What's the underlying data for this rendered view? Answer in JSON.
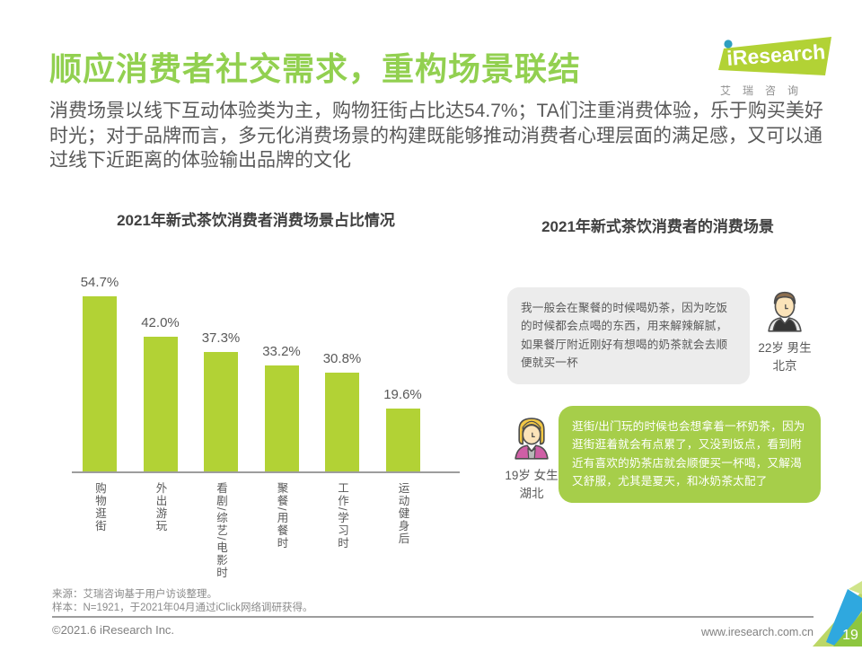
{
  "page": {
    "title": "顺应消费者社交需求，重构场景联结",
    "intro": "消费场景以线下互动体验类为主，购物狂街占比达54.7%；TA们注重消费体验，乐于购买美好时光；对于品牌而言，多元化消费场景的构建既能够推动消费者心理层面的满足感，又可以通过线下近距离的体验输出品牌的文化"
  },
  "logo": {
    "brand": "iResearch",
    "caption": "艾瑞咨询"
  },
  "chart_data": {
    "type": "bar",
    "title": "2021年新式茶饮消费者消费场景占比情况",
    "categories": [
      "购物逛街",
      "外出游玩",
      "看剧/综艺/电影时",
      "聚餐/用餐时",
      "工作/学习时",
      "运动健身后"
    ],
    "values": [
      54.7,
      42.0,
      37.3,
      33.2,
      30.8,
      19.6
    ],
    "value_labels": [
      "54.7%",
      "42.0%",
      "37.3%",
      "33.2%",
      "30.8%",
      "19.6%"
    ],
    "xlabel": "",
    "ylabel": "",
    "ylim": [
      0,
      60
    ],
    "grid": false,
    "legend": "none",
    "bar_color": "#b2d235"
  },
  "quotes": {
    "title": "2021年新式茶饮消费者的消费场景",
    "items": [
      {
        "text": "我一般会在聚餐的时候喝奶茶，因为吃饭的时候都会点喝的东西，用来解辣解腻，如果餐厅附近刚好有想喝的奶茶就会去顺便就买一杯",
        "persona": "22岁 男生",
        "location": "北京",
        "avatar": "male-avatar",
        "bubble_color": "#ececec"
      },
      {
        "text": "逛街/出门玩的时候也会想拿着一杯奶茶，因为逛街逛着就会有点累了，又没到饭点，看到附近有喜欢的奶茶店就会顺便买一杯喝，又解渴又舒服，尤其是夏天，和冰奶茶太配了",
        "persona": "19岁 女生",
        "location": "湖北",
        "avatar": "female-avatar",
        "bubble_color": "#a6ce4a"
      }
    ]
  },
  "footer": {
    "source": "来源：艾瑞咨询基于用户访谈整理。",
    "sample": "样本：N=1921，于2021年04月通过iClick网络调研获得。",
    "copyright": "©2021.6 iResearch Inc.",
    "website": "www.iresearch.com.cn",
    "page_number": "19"
  },
  "colors": {
    "title_green": "#92d050",
    "bar_green": "#b2d235",
    "quote_green": "#a6ce4a",
    "corner_blue": "#2fa8df",
    "corner_green": "#8dc63f",
    "text_gray": "#595959"
  }
}
